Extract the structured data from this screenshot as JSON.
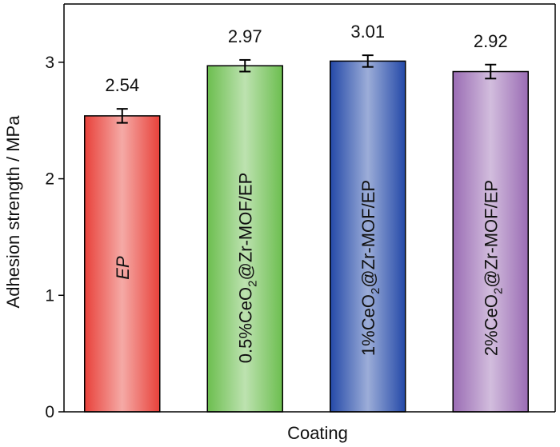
{
  "chart_data": {
    "type": "bar",
    "xlabel": "Coating",
    "ylabel": "Adhesion strength / MPa",
    "ylim": [
      0,
      3.5
    ],
    "yticks": [
      0,
      1,
      2,
      3
    ],
    "categories": [
      {
        "pre": "EP",
        "sub": "",
        "post": "",
        "italic": true
      },
      {
        "pre": "0.5%CeO",
        "sub": "2",
        "post": "@Zr-MOF/EP",
        "italic": false
      },
      {
        "pre": "1%CeO",
        "sub": "2",
        "post": "@Zr-MOF/EP",
        "italic": false
      },
      {
        "pre": "2%CeO",
        "sub": "2",
        "post": "@Zr-MOF/EP",
        "italic": false
      }
    ],
    "values": [
      2.54,
      2.97,
      3.01,
      2.92
    ],
    "value_labels": [
      "2.54",
      "2.97",
      "3.01",
      "2.92"
    ],
    "errors": [
      0.06,
      0.05,
      0.05,
      0.06
    ],
    "colors": [
      "#e8413a",
      "#6cbe4f",
      "#2449a8",
      "#9a6cb4"
    ],
    "grid": false,
    "legend": "none"
  }
}
